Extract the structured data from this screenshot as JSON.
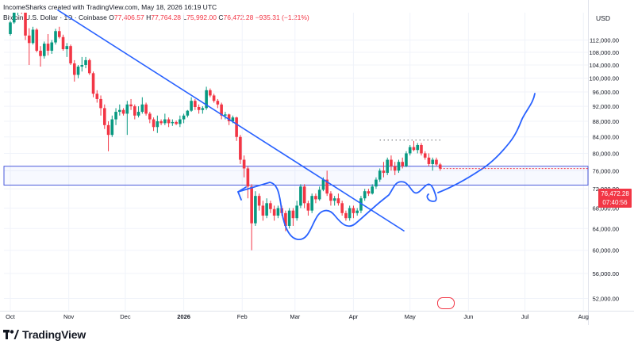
{
  "header": {
    "attribution": "IncomeSharks created with TradingView.com, May 18, 2026 16:19 UTC",
    "symbol": "Bitcoin",
    "pair": "U.S. Dollar · 1D · Coinbase",
    "open_label": "O",
    "open": "77,406.57",
    "high_label": "H",
    "high": "77,764.28",
    "low_label": "L",
    "low": "75,992.00",
    "close_label": "C",
    "close": "76,472.28",
    "change": "−935.31 (−1.21%)",
    "currency": "USD"
  },
  "badge": {
    "price": "76,472.28",
    "countdown": "07:40:56"
  },
  "footer": {
    "brand": "TradingView"
  },
  "colors": {
    "up": "#089981",
    "down": "#f23645",
    "drawing": "#2962ff",
    "zone_border": "#4a5adb",
    "grid": "#f0f3fa"
  },
  "chart_data": {
    "type": "candlestick",
    "title": "",
    "xlabel": "",
    "ylabel": "",
    "y_axis": {
      "scale": "log",
      "ticks": [
        52000,
        56000,
        60000,
        64000,
        68000,
        72000,
        76000,
        80000,
        84000,
        88000,
        92000,
        96000,
        100000,
        104000,
        108000,
        112000
      ],
      "tick_labels": [
        "52,000.00",
        "56,000.00",
        "60,000.00",
        "64,000.00",
        "68,000.00",
        "72,000.00",
        "76,000.00",
        "80,000.00",
        "84,000.00",
        "88,000.00",
        "92,000.00",
        "96,000.00",
        "100,000.00",
        "104,000.00",
        "108,000.00",
        "112,000.00"
      ],
      "range": [
        50000,
        128000
      ]
    },
    "x_axis": {
      "ticks": [
        "2025-10-01",
        "2025-11-01",
        "2025-12-01",
        "2026-01-01",
        "2026-02-01",
        "2026-03-01",
        "2026-04-01",
        "2026-05-01",
        "2026-06-01",
        "2026-07-01",
        "2026-08-01"
      ],
      "tick_labels": [
        "Oct",
        "Nov",
        "Dec",
        "2026",
        "Feb",
        "Mar",
        "Apr",
        "May",
        "Jun",
        "Jul",
        "Aug"
      ]
    },
    "last_close": 76472.28,
    "series": [
      {
        "points": [
          [
            "2025-10-01",
            114000,
            118500,
            113500,
            118000
          ],
          [
            "2025-10-03",
            118000,
            122000,
            117500,
            121500
          ],
          [
            "2025-10-05",
            121500,
            125500,
            120500,
            124000
          ],
          [
            "2025-10-07",
            124000,
            126000,
            121000,
            121800
          ],
          [
            "2025-10-09",
            121800,
            122500,
            112000,
            113500
          ],
          [
            "2025-10-11",
            113500,
            116000,
            104000,
            111000
          ],
          [
            "2025-10-13",
            111000,
            116500,
            110500,
            115500
          ],
          [
            "2025-10-15",
            115500,
            116000,
            108000,
            108500
          ],
          [
            "2025-10-17",
            108500,
            110000,
            103500,
            106800
          ],
          [
            "2025-10-19",
            106800,
            111500,
            106000,
            110800
          ],
          [
            "2025-10-21",
            110800,
            114000,
            107000,
            108500
          ],
          [
            "2025-10-23",
            108500,
            112000,
            107500,
            111200
          ],
          [
            "2025-10-25",
            111200,
            115800,
            110500,
            115000
          ],
          [
            "2025-10-27",
            115000,
            116500,
            112500,
            113000
          ],
          [
            "2025-10-29",
            113000,
            113800,
            108500,
            109000
          ],
          [
            "2025-10-31",
            109000,
            111000,
            106500,
            110000
          ],
          [
            "2025-11-02",
            110000,
            110500,
            104000,
            104500
          ],
          [
            "2025-11-04",
            104500,
            105500,
            99000,
            101000
          ],
          [
            "2025-11-06",
            101000,
            104000,
            100000,
            103500
          ],
          [
            "2025-11-08",
            103500,
            106500,
            102000,
            104000
          ],
          [
            "2025-11-10",
            104000,
            106500,
            103000,
            105500
          ],
          [
            "2025-11-12",
            105500,
            106000,
            101000,
            101500
          ],
          [
            "2025-11-14",
            101500,
            102000,
            94500,
            95500
          ],
          [
            "2025-11-16",
            95500,
            96500,
            93000,
            94000
          ],
          [
            "2025-11-18",
            94000,
            95000,
            89500,
            91500
          ],
          [
            "2025-11-20",
            91500,
            92500,
            86000,
            87000
          ],
          [
            "2025-11-22",
            87000,
            88000,
            80500,
            84500
          ],
          [
            "2025-11-24",
            84500,
            89500,
            84000,
            88500
          ],
          [
            "2025-11-26",
            88500,
            91500,
            87000,
            90500
          ],
          [
            "2025-11-28",
            90500,
            92500,
            89500,
            91000
          ],
          [
            "2025-11-30",
            91000,
            91500,
            89500,
            90000
          ],
          [
            "2025-12-02",
            90000,
            93500,
            84500,
            92500
          ],
          [
            "2025-12-04",
            92500,
            94000,
            91000,
            92000
          ],
          [
            "2025-12-06",
            92000,
            92500,
            88500,
            89500
          ],
          [
            "2025-12-08",
            89500,
            92000,
            89000,
            90500
          ],
          [
            "2025-12-10",
            90500,
            94500,
            90000,
            92500
          ],
          [
            "2025-12-12",
            92500,
            93000,
            89500,
            90000
          ],
          [
            "2025-12-14",
            90000,
            90500,
            87500,
            88500
          ],
          [
            "2025-12-16",
            88500,
            89000,
            85500,
            86500
          ],
          [
            "2025-12-18",
            86500,
            89500,
            85000,
            88000
          ],
          [
            "2025-12-20",
            88000,
            88500,
            87000,
            87500
          ],
          [
            "2025-12-22",
            87500,
            90000,
            87000,
            88500
          ],
          [
            "2025-12-24",
            88500,
            89000,
            86500,
            87500
          ],
          [
            "2025-12-26",
            87500,
            88500,
            86800,
            87800
          ],
          [
            "2025-12-28",
            87800,
            88200,
            87000,
            87300
          ],
          [
            "2025-12-30",
            87300,
            89500,
            86500,
            88500
          ],
          [
            "2026-01-01",
            88500,
            90000,
            87500,
            89500
          ],
          [
            "2026-01-03",
            89500,
            91000,
            89000,
            90800
          ],
          [
            "2026-01-05",
            90800,
            94500,
            90500,
            93500
          ],
          [
            "2026-01-07",
            93500,
            94000,
            91000,
            91800
          ],
          [
            "2026-01-09",
            91800,
            92500,
            90000,
            91000
          ],
          [
            "2026-01-11",
            91000,
            92000,
            90000,
            91500
          ],
          [
            "2026-01-13",
            91500,
            97500,
            91000,
            96500
          ],
          [
            "2026-01-15",
            96500,
            97000,
            94500,
            95000
          ],
          [
            "2026-01-17",
            95000,
            95500,
            93000,
            93500
          ],
          [
            "2026-01-19",
            93500,
            94000,
            91500,
            92500
          ],
          [
            "2026-01-21",
            92500,
            93000,
            88500,
            89500
          ],
          [
            "2026-01-23",
            89500,
            90500,
            88500,
            89800
          ],
          [
            "2026-01-25",
            89800,
            90000,
            87000,
            88000
          ],
          [
            "2026-01-27",
            88000,
            89500,
            87500,
            89000
          ],
          [
            "2026-01-29",
            89000,
            89200,
            83000,
            84000
          ],
          [
            "2026-01-31",
            84000,
            84500,
            77500,
            78500
          ],
          [
            "2026-02-02",
            78500,
            79500,
            74500,
            76500
          ],
          [
            "2026-02-04",
            76500,
            77000,
            70000,
            72500
          ],
          [
            "2026-02-06",
            72500,
            73000,
            60000,
            65000
          ],
          [
            "2026-02-08",
            65000,
            71500,
            64500,
            70500
          ],
          [
            "2026-02-10",
            70500,
            71000,
            67500,
            68500
          ],
          [
            "2026-02-12",
            68500,
            69500,
            65500,
            66500
          ],
          [
            "2026-02-14",
            66500,
            70000,
            66000,
            69000
          ],
          [
            "2026-02-16",
            69000,
            69500,
            67000,
            67800
          ],
          [
            "2026-02-18",
            67800,
            68500,
            65500,
            66500
          ],
          [
            "2026-02-20",
            66500,
            68500,
            66000,
            68000
          ],
          [
            "2026-02-22",
            68000,
            68500,
            66500,
            67000
          ],
          [
            "2026-02-24",
            67000,
            67500,
            63500,
            64500
          ],
          [
            "2026-02-26",
            64500,
            68000,
            64000,
            67500
          ],
          [
            "2026-02-28",
            67500,
            68000,
            64500,
            66000
          ],
          [
            "2026-03-02",
            66000,
            69500,
            65500,
            68500
          ],
          [
            "2026-03-04",
            68500,
            73000,
            68000,
            72500
          ],
          [
            "2026-03-06",
            72500,
            73000,
            68000,
            69000
          ],
          [
            "2026-03-08",
            69000,
            69500,
            66500,
            67500
          ],
          [
            "2026-03-10",
            67500,
            71000,
            67000,
            70500
          ],
          [
            "2026-03-12",
            70500,
            71000,
            69000,
            69800
          ],
          [
            "2026-03-14",
            69800,
            72500,
            69500,
            71800
          ],
          [
            "2026-03-16",
            71800,
            74500,
            71500,
            74000
          ],
          [
            "2026-03-18",
            74000,
            76000,
            70500,
            71000
          ],
          [
            "2026-03-20",
            71000,
            71500,
            68500,
            69500
          ],
          [
            "2026-03-22",
            69500,
            70500,
            68500,
            70000
          ],
          [
            "2026-03-24",
            70000,
            71000,
            68500,
            69000
          ],
          [
            "2026-03-26",
            69000,
            69500,
            66500,
            67000
          ],
          [
            "2026-03-28",
            67000,
            67500,
            65500,
            66000
          ],
          [
            "2026-03-30",
            66000,
            68500,
            65500,
            68000
          ],
          [
            "2026-04-01",
            68000,
            68500,
            66000,
            67000
          ],
          [
            "2026-04-03",
            67000,
            68000,
            66500,
            67500
          ],
          [
            "2026-04-05",
            67500,
            70500,
            67000,
            70000
          ],
          [
            "2026-04-07",
            70000,
            72000,
            69500,
            71500
          ],
          [
            "2026-04-09",
            71500,
            72000,
            70500,
            71000
          ],
          [
            "2026-04-11",
            71000,
            73000,
            70800,
            72500
          ],
          [
            "2026-04-13",
            72500,
            74500,
            72000,
            74000
          ],
          [
            "2026-04-15",
            74000,
            76500,
            73500,
            76000
          ],
          [
            "2026-04-17",
            76000,
            78000,
            74500,
            75500
          ],
          [
            "2026-04-19",
            75500,
            79000,
            75000,
            78500
          ],
          [
            "2026-04-21",
            78500,
            79500,
            76000,
            77000
          ],
          [
            "2026-04-23",
            77000,
            78000,
            75000,
            76000
          ],
          [
            "2026-04-25",
            76000,
            78500,
            75500,
            78000
          ],
          [
            "2026-04-27",
            78000,
            79000,
            76500,
            77000
          ],
          [
            "2026-04-29",
            77000,
            80500,
            76800,
            80000
          ],
          [
            "2026-05-01",
            80000,
            82000,
            79500,
            81500
          ],
          [
            "2026-05-03",
            81500,
            83000,
            80500,
            80800
          ],
          [
            "2026-05-05",
            80800,
            82500,
            80000,
            82000
          ],
          [
            "2026-05-07",
            82000,
            82500,
            79500,
            80000
          ],
          [
            "2026-05-09",
            80000,
            80500,
            78500,
            79000
          ],
          [
            "2026-05-11",
            79000,
            80000,
            77000,
            77500
          ],
          [
            "2026-05-13",
            77500,
            79000,
            76000,
            78500
          ],
          [
            "2026-05-15",
            78500,
            79000,
            77000,
            77406.57
          ],
          [
            "2026-05-17",
            77406.57,
            77764.28,
            75992,
            76472.28
          ]
        ]
      }
    ],
    "annotations": {
      "trendline": {
        "from": [
          "2025-10-26",
          122500
        ],
        "to": [
          "2026-04-28",
          63500
        ]
      },
      "support_zone": {
        "from_date": "2025-10-01",
        "to_date": "2026-08-01",
        "high": 77000,
        "low": 72800
      },
      "projected_path": [
        [
          "2026-05-17",
          76000
        ],
        [
          "2026-06-05",
          82000
        ],
        [
          "2026-06-25",
          88000
        ],
        [
          "2026-07-05",
          100500
        ]
      ],
      "dotted_resistance": {
        "from_date": "2026-04-15",
        "to_date": "2026-05-17",
        "value": 83200
      }
    }
  }
}
